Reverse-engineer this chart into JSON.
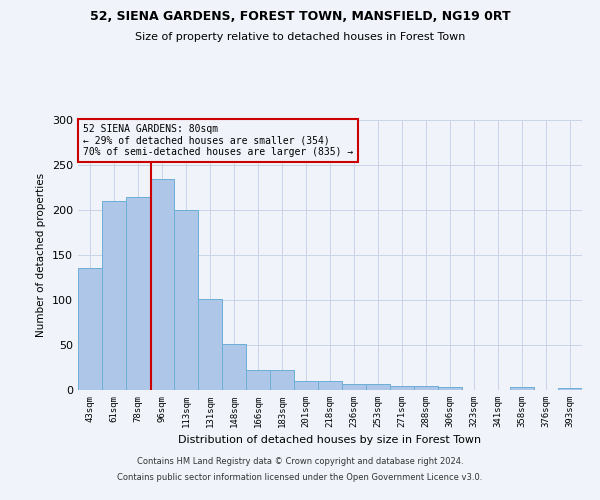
{
  "title": "52, SIENA GARDENS, FOREST TOWN, MANSFIELD, NG19 0RT",
  "subtitle": "Size of property relative to detached houses in Forest Town",
  "xlabel": "Distribution of detached houses by size in Forest Town",
  "ylabel": "Number of detached properties",
  "footer_line1": "Contains HM Land Registry data © Crown copyright and database right 2024.",
  "footer_line2": "Contains public sector information licensed under the Open Government Licence v3.0.",
  "bar_labels": [
    "43sqm",
    "61sqm",
    "78sqm",
    "96sqm",
    "113sqm",
    "131sqm",
    "148sqm",
    "166sqm",
    "183sqm",
    "201sqm",
    "218sqm",
    "236sqm",
    "253sqm",
    "271sqm",
    "288sqm",
    "306sqm",
    "323sqm",
    "341sqm",
    "358sqm",
    "376sqm",
    "393sqm"
  ],
  "bar_values": [
    136,
    210,
    215,
    235,
    200,
    101,
    51,
    22,
    22,
    10,
    10,
    7,
    7,
    5,
    4,
    3,
    0,
    0,
    3,
    0,
    2
  ],
  "bar_color": "#aec6e8",
  "bar_edgecolor": "#6aaed6",
  "ylim": [
    0,
    300
  ],
  "yticks": [
    0,
    50,
    100,
    150,
    200,
    250,
    300
  ],
  "property_label": "52 SIENA GARDENS: 80sqm",
  "annotation_line1": "← 29% of detached houses are smaller (354)",
  "annotation_line2": "70% of semi-detached houses are larger (835) →",
  "vline_color": "#cc0000",
  "annotation_box_edgecolor": "#cc0000",
  "bg_color": "#f0f4fa",
  "grid_color": "#c8d4e8",
  "vline_x": 2.55
}
